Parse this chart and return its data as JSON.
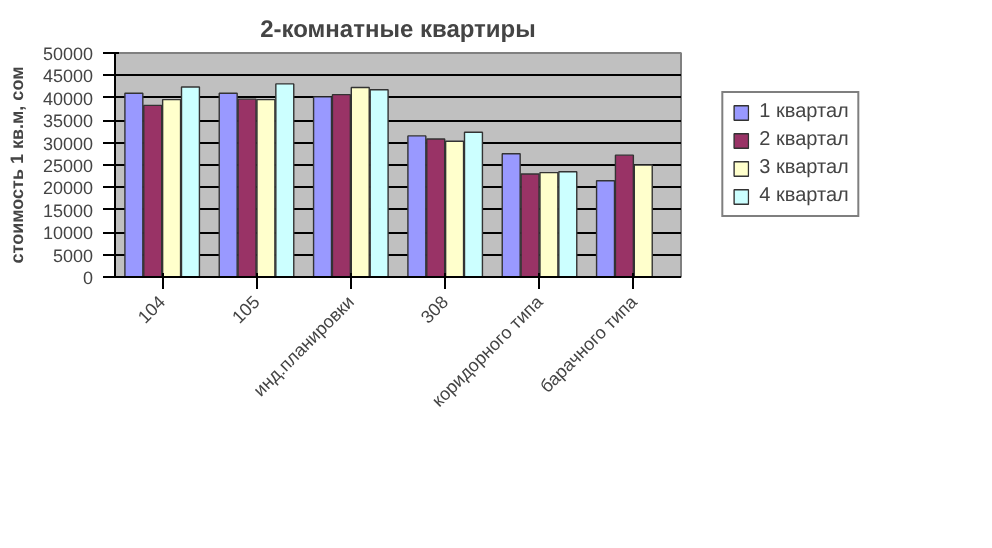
{
  "chart_data": {
    "type": "bar",
    "title": "2-комнатные квартиры",
    "ylabel": "стоимость 1 кв.м, сом",
    "categories": [
      "104",
      "105",
      "инд.планировки",
      "308",
      "коридорного типа",
      "барачного типа"
    ],
    "series": [
      {
        "name": "1 квартал",
        "color": "#9999ff",
        "values": [
          41000,
          41000,
          40200,
          31500,
          27500,
          21500
        ]
      },
      {
        "name": "2 квартал",
        "color": "#993366",
        "values": [
          38300,
          39700,
          40700,
          30800,
          23000,
          27200
        ]
      },
      {
        "name": "3 квартал",
        "color": "#ffffcc",
        "values": [
          39600,
          39600,
          42300,
          30300,
          23300,
          25000
        ]
      },
      {
        "name": "4 квартал",
        "color": "#ccffff",
        "values": [
          42400,
          43100,
          41800,
          32300,
          23500,
          null
        ]
      }
    ],
    "ylim": [
      0,
      50000
    ],
    "yticks": [
      0,
      5000,
      10000,
      15000,
      20000,
      25000,
      30000,
      35000,
      40000,
      45000,
      50000
    ],
    "grid": "y",
    "legend": "right"
  }
}
